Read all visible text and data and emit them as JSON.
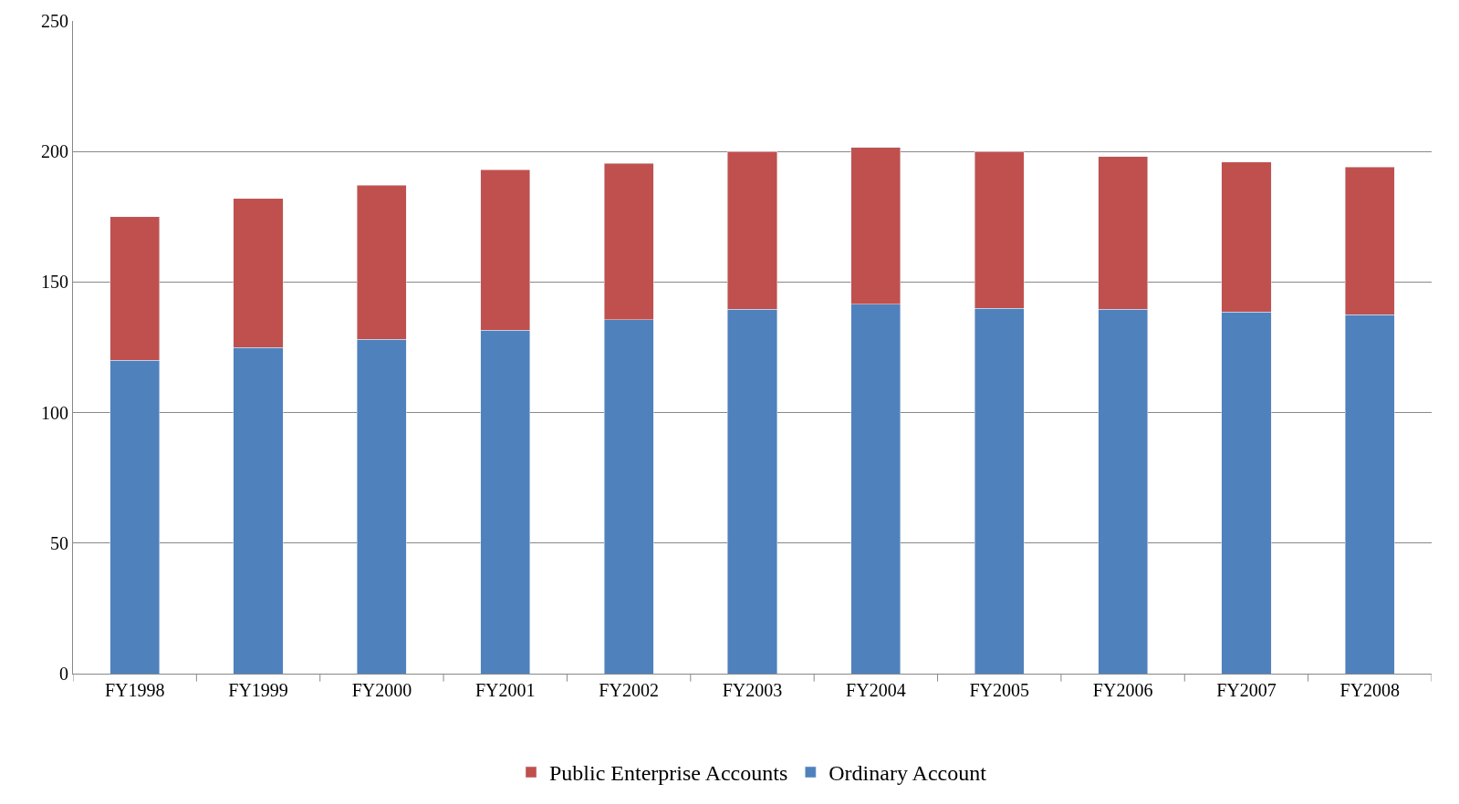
{
  "chart_data": {
    "type": "bar",
    "stacked": true,
    "categories": [
      "FY1998",
      "FY1999",
      "FY2000",
      "FY2001",
      "FY2002",
      "FY2003",
      "FY2004",
      "FY2005",
      "FY2006",
      "FY2007",
      "FY2008"
    ],
    "series": [
      {
        "name": "Ordinary Account",
        "color": "#4f81bd",
        "values": [
          120,
          125,
          128,
          131.5,
          135.5,
          139.5,
          141.5,
          140,
          139.5,
          138.5,
          137.5
        ]
      },
      {
        "name": "Public Enterprise Accounts",
        "color": "#c0504d",
        "values": [
          55,
          57,
          59,
          61.5,
          60,
          60.5,
          60,
          60,
          58.5,
          57.5,
          56.5
        ]
      }
    ],
    "ylim": [
      0,
      250
    ],
    "yticks": [
      0,
      50,
      100,
      150,
      200,
      250
    ],
    "grid": "y",
    "legend": "bottom"
  }
}
